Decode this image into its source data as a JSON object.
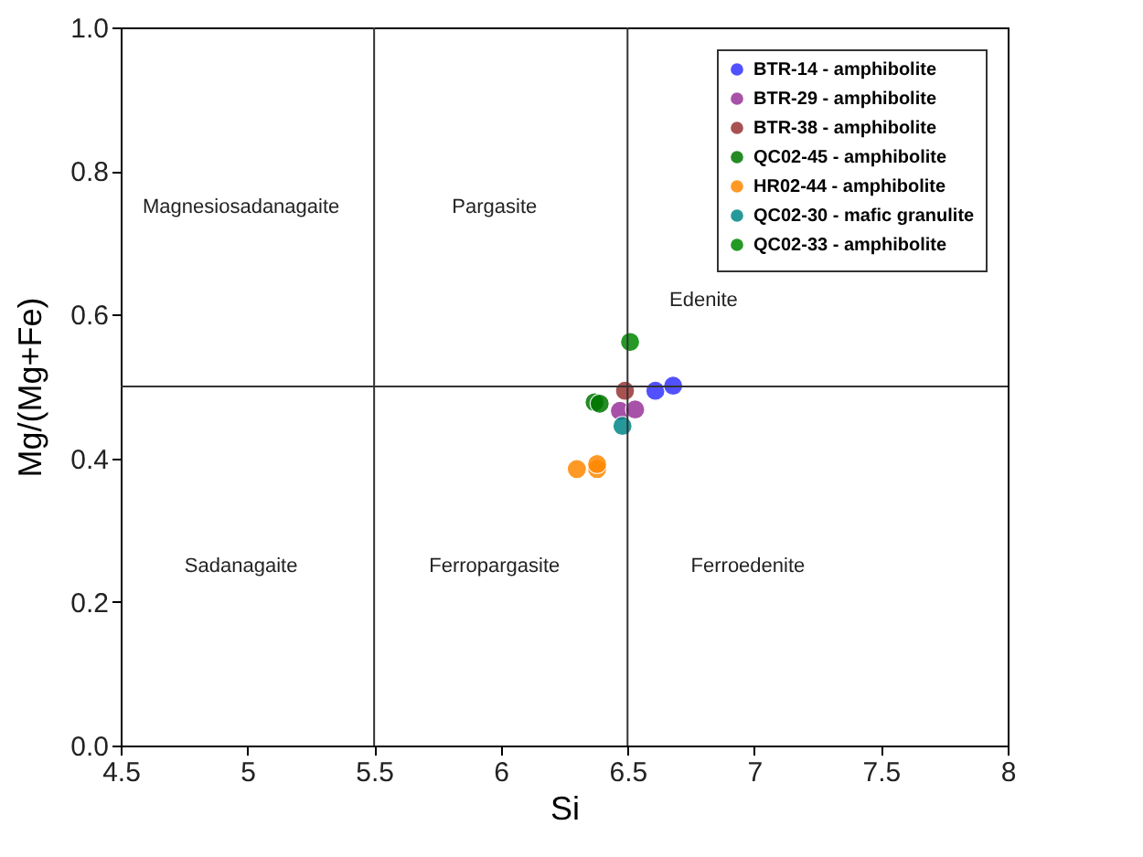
{
  "chart_data": {
    "type": "scatter",
    "xlabel": "Si",
    "ylabel": "Mg/(Mg+Fe)",
    "xlim": [
      4.5,
      8.0
    ],
    "xticks": [
      4.5,
      5.0,
      5.5,
      6.0,
      6.5,
      7.0,
      7.5,
      8.0
    ],
    "ylim": [
      0.0,
      1.0
    ],
    "yticks": [
      {
        "value": 0,
        "label": "0.0"
      },
      0.2,
      0.4,
      0.6,
      0.8,
      {
        "value": 1,
        "label": "1.0"
      }
    ],
    "grid": false,
    "legend": "top right",
    "marker": "circle",
    "series": [
      {
        "name": "BTR-14 - amphibolite",
        "color": "#3333ff",
        "x": [
          6.61,
          6.68
        ],
        "values": [
          0.494,
          0.501
        ]
      },
      {
        "name": "BTR-29 - amphibolite",
        "color": "#993399",
        "x": [
          6.47,
          6.53
        ],
        "values": [
          0.466,
          0.468
        ]
      },
      {
        "name": "BTR-38 - amphibolite",
        "color": "#993333",
        "x": [
          6.49
        ],
        "values": [
          0.494
        ]
      },
      {
        "name": "QC02-45 - amphibolite",
        "color": "#007700",
        "x": [
          6.37,
          6.39
        ],
        "values": [
          0.478,
          0.476
        ]
      },
      {
        "name": "HR02-44 - amphibolite",
        "color": "#ff8800",
        "x": [
          6.3,
          6.38,
          6.38
        ],
        "values": [
          0.385,
          0.385,
          0.392
        ]
      },
      {
        "name": "QC02-30 - mafic granulite",
        "color": "#008888",
        "x": [
          6.48
        ],
        "values": [
          0.445
        ]
      },
      {
        "name": "QC02-33 - amphibolite",
        "color": "#008800",
        "x": [
          6.51
        ],
        "values": [
          0.562
        ]
      }
    ],
    "ref_lines": [
      {
        "axis": "x",
        "value": 5.5,
        "color": "#333333"
      },
      {
        "axis": "x",
        "value": 6.5,
        "color": "#333333"
      },
      {
        "axis": "y",
        "value": 0.5,
        "color": "#333333"
      }
    ],
    "annotations": [
      "Magnesiosadanagaite",
      "Pargasite",
      "Edenite",
      "Sadanagaite",
      "Ferropargasite",
      "Ferroedenite"
    ]
  }
}
